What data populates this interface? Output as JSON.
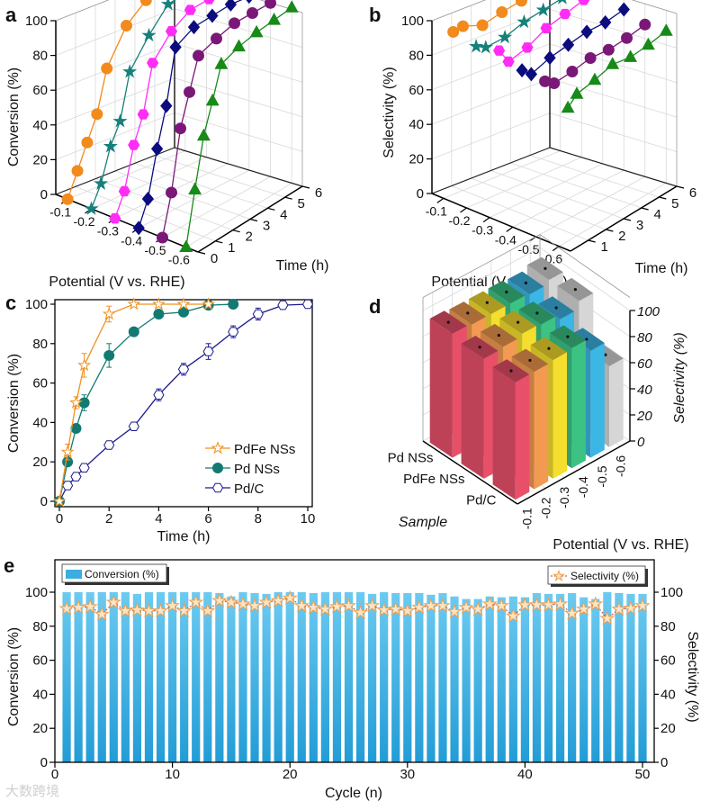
{
  "chart_data": [
    {
      "panel": "a",
      "type": "line3d",
      "xlabel": "Potential (V vs. RHE)",
      "ylabel": "Time (h)",
      "zlabel": "Conversion (%)",
      "xlim": [
        -0.05,
        -0.65
      ],
      "ylim": [
        0,
        6
      ],
      "zlim": [
        0,
        100
      ],
      "x_ticks": [
        -0.1,
        -0.2,
        -0.3,
        -0.4,
        -0.5,
        -0.6
      ],
      "x_tick_labels": [
        "-0.1",
        "-0.2",
        "-0.3",
        "-0.4",
        "-0.5",
        "-0.6"
      ],
      "y_ticks": [
        0,
        1,
        2,
        3,
        4,
        5,
        6
      ],
      "y_tick_labels": [
        "0",
        "1",
        "2",
        "3",
        "4",
        "5",
        "6"
      ],
      "z_ticks": [
        0,
        20,
        40,
        60,
        80,
        100
      ],
      "z_tick_labels": [
        "0",
        "20",
        "40",
        "60",
        "80",
        "100"
      ],
      "series": [
        {
          "potential": -0.1,
          "color": "#f28a1c",
          "marker": "circle",
          "time": [
            0,
            0.5,
            1,
            1.5,
            2,
            3,
            4,
            5,
            6
          ],
          "values": [
            0,
            14,
            28,
            42,
            66,
            86,
            96,
            100,
            100
          ]
        },
        {
          "potential": -0.2,
          "color": "#16807a",
          "marker": "star",
          "time": [
            0,
            0.5,
            1,
            1.5,
            2,
            3,
            4,
            5,
            6
          ],
          "values": [
            0,
            12,
            31,
            43,
            69,
            85,
            98,
            100,
            100
          ]
        },
        {
          "potential": -0.3,
          "color": "#ff2cf6",
          "marker": "hexagon",
          "time": [
            0,
            0.5,
            1,
            1.5,
            2,
            3,
            4,
            5,
            6
          ],
          "values": [
            0,
            13,
            37,
            52,
            79,
            92,
            99,
            100,
            100
          ]
        },
        {
          "potential": -0.4,
          "color": "#0c0c7e",
          "marker": "diamond",
          "time": [
            0,
            0.5,
            1,
            1.5,
            2,
            3,
            4,
            5,
            6
          ],
          "values": [
            0,
            14,
            40,
            62,
            93,
            99,
            100,
            101,
            100
          ]
        },
        {
          "potential": -0.5,
          "color": "#7a1878",
          "marker": "circle",
          "time": [
            0,
            0.5,
            1,
            1.5,
            2,
            3,
            4,
            5,
            6
          ],
          "values": [
            0,
            23,
            57,
            75,
            93,
            97,
            100,
            100,
            100
          ]
        },
        {
          "potential": -0.6,
          "color": "#178a17",
          "marker": "triangle",
          "time": [
            0,
            0.5,
            1,
            1.5,
            2,
            3,
            4,
            5,
            6
          ],
          "values": [
            0,
            30,
            58,
            75,
            93,
            97,
            99,
            100,
            101
          ]
        }
      ]
    },
    {
      "panel": "b",
      "type": "line3d",
      "xlabel": "Potential (V vs. RHE)",
      "ylabel": "Time (h)",
      "zlabel": "Selectivity (%)",
      "xlim": [
        -0.05,
        -0.65
      ],
      "ylim": [
        0,
        6
      ],
      "zlim": [
        0,
        100
      ],
      "x_ticks": [
        -0.1,
        -0.2,
        -0.3,
        -0.4,
        -0.5,
        -0.6
      ],
      "x_tick_labels": [
        "-0.1",
        "-0.2",
        "-0.3",
        "-0.4",
        "-0.5",
        "-0.6"
      ],
      "y_ticks": [
        1,
        2,
        3,
        4,
        5,
        6
      ],
      "y_tick_labels": [
        "1",
        "2",
        "3",
        "4",
        "5",
        "6"
      ],
      "z_ticks": [
        0,
        20,
        40,
        60,
        80,
        100
      ],
      "z_tick_labels": [
        "0",
        "20",
        "40",
        "60",
        "80",
        "100"
      ],
      "series": [
        {
          "potential": -0.1,
          "color": "#f28a1c",
          "marker": "circle",
          "time": [
            0.5,
            1,
            2,
            3,
            4,
            5,
            6
          ],
          "values": [
            94,
            95,
            91,
            94,
            96,
            99,
            100
          ]
        },
        {
          "potential": -0.2,
          "color": "#16807a",
          "marker": "star",
          "time": [
            0.5,
            1,
            2,
            3,
            4,
            5,
            6
          ],
          "values": [
            91,
            88,
            89,
            93,
            95,
            97,
            99
          ]
        },
        {
          "potential": -0.3,
          "color": "#ff2cf6",
          "marker": "hexagon",
          "time": [
            0.5,
            1,
            2,
            3,
            4,
            5,
            6
          ],
          "values": [
            94,
            85,
            88,
            94,
            97,
            100,
            99
          ]
        },
        {
          "potential": -0.4,
          "color": "#0c0c7e",
          "marker": "diamond",
          "time": [
            0.5,
            1,
            2,
            3,
            4,
            5,
            6
          ],
          "values": [
            88,
            83,
            87,
            89,
            91,
            91,
            93
          ]
        },
        {
          "potential": -0.5,
          "color": "#7a1878",
          "marker": "circle",
          "time": [
            0.5,
            1,
            2,
            3,
            4,
            5,
            6
          ],
          "values": [
            87,
            83,
            84,
            86,
            85,
            86,
            88
          ]
        },
        {
          "potential": -0.6,
          "color": "#178a17",
          "marker": "triangle",
          "time": [
            0.5,
            1,
            2,
            3,
            4,
            5,
            6
          ],
          "values": [
            77,
            82,
            84,
            87,
            85,
            86,
            88
          ]
        }
      ]
    },
    {
      "panel": "c",
      "type": "line",
      "xlabel": "Time (h)",
      "ylabel": "Conversion (%)",
      "xlim": [
        0,
        10
      ],
      "ylim": [
        0,
        100
      ],
      "x_ticks": [
        0,
        2,
        4,
        6,
        8,
        10
      ],
      "x_tick_labels": [
        "0",
        "2",
        "4",
        "6",
        "8",
        "10"
      ],
      "y_ticks": [
        0,
        20,
        40,
        60,
        80,
        100
      ],
      "y_tick_labels": [
        "0",
        "20",
        "40",
        "60",
        "80",
        "100"
      ],
      "legend_position": "bottom-right",
      "series": [
        {
          "name": "PdFe NSs",
          "color": "#f0901e",
          "marker": "star",
          "fill": "#ffffff",
          "x": [
            0,
            0.33,
            0.67,
            1,
            2,
            3,
            4,
            5,
            6
          ],
          "y": [
            0,
            25,
            50,
            69,
            95,
            100,
            100,
            100,
            100
          ],
          "err": [
            0,
            4,
            3,
            6,
            4,
            1,
            0,
            0,
            0
          ]
        },
        {
          "name": "Pd NSs",
          "color": "#137a72",
          "marker": "circle",
          "fill": "#137a72",
          "x": [
            0,
            0.33,
            0.67,
            1,
            2,
            3,
            4,
            5,
            6,
            7
          ],
          "y": [
            0,
            20,
            37,
            50,
            74,
            86,
            95,
            96,
            99.5,
            100
          ],
          "err": [
            0,
            2,
            2,
            4,
            6,
            1,
            1,
            1,
            1,
            0
          ]
        },
        {
          "name": "Pd/C",
          "color": "#1a1a8c",
          "marker": "hexagon",
          "fill": "#ffffff",
          "x": [
            0,
            0.33,
            0.67,
            1,
            2,
            3,
            4,
            5,
            6,
            7,
            8,
            9,
            10
          ],
          "y": [
            0,
            8,
            12.5,
            17,
            28.5,
            38,
            54,
            67,
            76,
            86,
            95,
            99.5,
            100
          ],
          "err": [
            0,
            2,
            1,
            2,
            1,
            1,
            3,
            3,
            4,
            3,
            3,
            1,
            0
          ]
        }
      ]
    },
    {
      "panel": "d",
      "type": "bar3d",
      "xlabel": "Sample",
      "ylabel": "Potential (V vs. RHE)",
      "zlabel": "Selectivity (%)",
      "samples": [
        "Pd NSs",
        "PdFe NSs",
        "Pd/C"
      ],
      "potentials": [
        "-0.1",
        "-0.2",
        "-0.3",
        "-0.4",
        "-0.5",
        "-0.6"
      ],
      "colors": [
        "#e8506a",
        "#f29a52",
        "#f5de2e",
        "#3cc384",
        "#3cb6e4",
        "#d6d6d6"
      ],
      "zlim": [
        0,
        100
      ],
      "z_ticks": [
        0,
        20,
        40,
        60,
        80,
        100
      ],
      "z_tick_labels": [
        "0",
        "20",
        "40",
        "60",
        "80",
        "100"
      ],
      "values": [
        [
          95,
          94,
          94,
          94,
          93,
          96
        ],
        [
          92,
          93,
          95,
          94,
          90,
          96
        ],
        [
          90,
          90,
          91,
          92,
          82,
          62
        ]
      ]
    },
    {
      "panel": "e",
      "type": "bar+line",
      "xlabel": "Cycle (n)",
      "ylabel": "Conversion (%)",
      "y2label": "Selectivity (%)",
      "xlim": [
        0,
        51
      ],
      "ylim": [
        0,
        120
      ],
      "x_ticks": [
        0,
        10,
        20,
        30,
        40,
        50
      ],
      "x_tick_labels": [
        "0",
        "10",
        "20",
        "30",
        "40",
        "50"
      ],
      "y_ticks": [
        0,
        20,
        40,
        60,
        80,
        100
      ],
      "y_tick_labels": [
        "0",
        "20",
        "40",
        "60",
        "80",
        "100"
      ],
      "legend": {
        "bars": "Conversion (%)",
        "line": "Selectivity (%)"
      },
      "bar_color": "#3aaee0",
      "line_color": "#f0a050",
      "cycles": [
        1,
        2,
        3,
        4,
        5,
        6,
        7,
        8,
        9,
        10,
        11,
        12,
        13,
        14,
        15,
        16,
        17,
        18,
        19,
        20,
        21,
        22,
        23,
        24,
        25,
        26,
        27,
        28,
        29,
        30,
        31,
        32,
        33,
        34,
        35,
        36,
        37,
        38,
        39,
        40,
        41,
        42,
        43,
        44,
        45,
        46,
        47,
        48,
        49,
        50
      ],
      "conversion": [
        100,
        100,
        100,
        100,
        100,
        100,
        99,
        100,
        100,
        100,
        100,
        100,
        100,
        99.5,
        97.5,
        100,
        99.5,
        99,
        100,
        100,
        100,
        99.5,
        100,
        100,
        100,
        100,
        99,
        100,
        99.5,
        99.5,
        99.5,
        98.5,
        99.5,
        97.5,
        96,
        96,
        97.5,
        97,
        97.5,
        97,
        99.5,
        99,
        99,
        99.5,
        97,
        96,
        100,
        99.5,
        99,
        99
      ],
      "selectivity": [
        90.3,
        91,
        91.5,
        87,
        94,
        89,
        89.5,
        89,
        89,
        92,
        89,
        94,
        89,
        95,
        94,
        93,
        92,
        94,
        95,
        96.5,
        92,
        91,
        90,
        91.5,
        92,
        88,
        92,
        89.5,
        90,
        89,
        91,
        92,
        92,
        88.5,
        91,
        90,
        93,
        92,
        86,
        92.5,
        92.5,
        92.5,
        93,
        87.5,
        90,
        93,
        84.5,
        90,
        90.5,
        92
      ]
    }
  ],
  "panel_labels": [
    "a",
    "b",
    "c",
    "d",
    "e"
  ],
  "watermark": "大数跨境"
}
